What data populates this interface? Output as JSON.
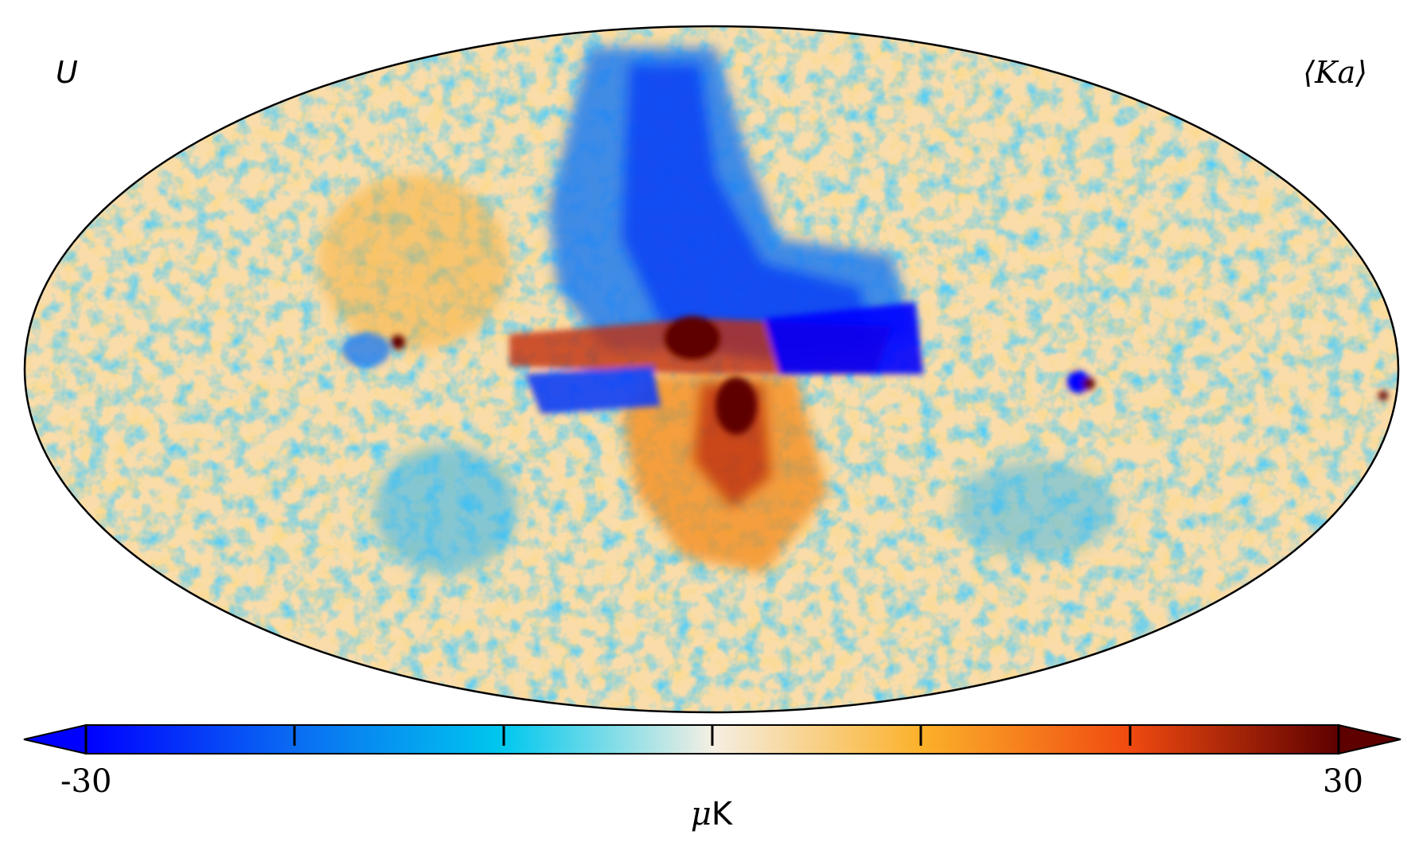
{
  "map": {
    "projection": "mollweide",
    "stokes_parameter": "U",
    "band": "⟨Ka⟩"
  },
  "colorbar": {
    "min_label": "-30",
    "max_label": "30",
    "min": -30,
    "max": 30,
    "unit_mu": "μ",
    "unit_k": "K",
    "colors": [
      "#0000ff",
      "#0a6cf2",
      "#00c8ee",
      "#f5efe3",
      "#fbb12a",
      "#f04a10",
      "#5e0000"
    ]
  }
}
